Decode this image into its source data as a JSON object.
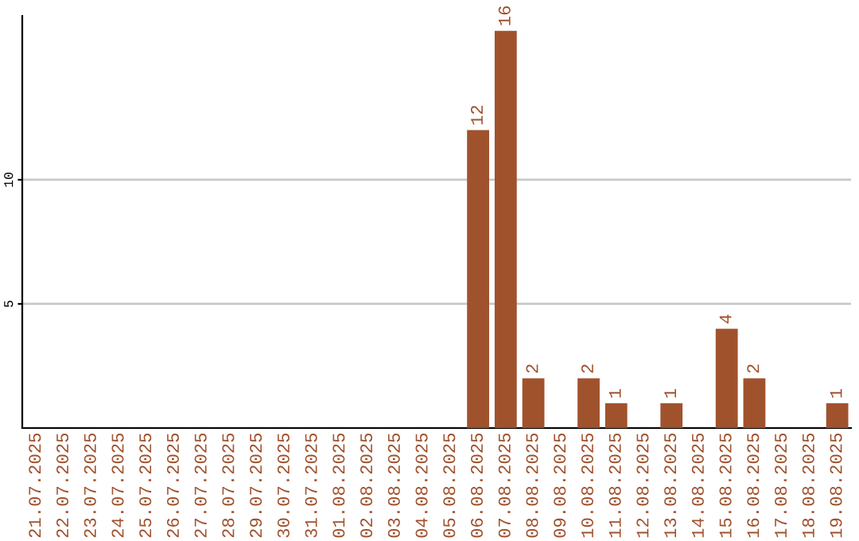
{
  "chart_data": {
    "type": "bar",
    "categories": [
      "21.07.2025",
      "22.07.2025",
      "23.07.2025",
      "24.07.2025",
      "25.07.2025",
      "26.07.2025",
      "27.07.2025",
      "28.07.2025",
      "29.07.2025",
      "30.07.2025",
      "31.07.2025",
      "01.08.2025",
      "02.08.2025",
      "03.08.2025",
      "04.08.2025",
      "05.08.2025",
      "06.08.2025",
      "07.08.2025",
      "08.08.2025",
      "09.08.2025",
      "10.08.2025",
      "11.08.2025",
      "12.08.2025",
      "13.08.2025",
      "14.08.2025",
      "15.08.2025",
      "16.08.2025",
      "17.08.2025",
      "18.08.2025",
      "19.08.2025"
    ],
    "values": [
      0,
      0,
      0,
      0,
      0,
      0,
      0,
      0,
      0,
      0,
      0,
      0,
      0,
      0,
      0,
      0,
      12,
      16,
      2,
      0,
      2,
      1,
      0,
      1,
      0,
      4,
      2,
      0,
      0,
      1
    ],
    "value_labels": [
      null,
      null,
      null,
      null,
      null,
      null,
      null,
      null,
      null,
      null,
      null,
      null,
      null,
      null,
      null,
      null,
      "12",
      "16",
      "2",
      null,
      "2",
      "1",
      null,
      "1",
      null,
      "4",
      "2",
      null,
      null,
      "1"
    ],
    "color": "#a0522d",
    "ylim": [
      0,
      16.6
    ],
    "yticks": [
      5,
      10
    ],
    "grid": "y",
    "legend": false
  }
}
